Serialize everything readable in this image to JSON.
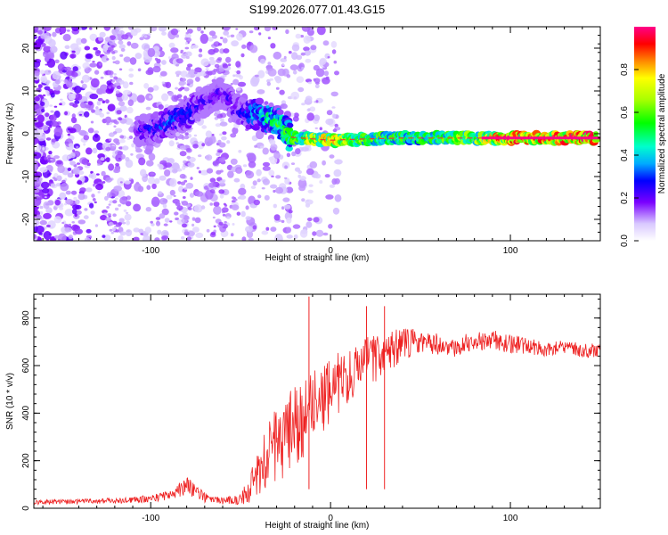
{
  "title": "S199.2026.077.01.43.G15",
  "colors": {
    "snr_line": "#ee2222",
    "signal_ridge": "#ee3333",
    "background": "#ffffff"
  },
  "chart_data": [
    {
      "type": "heatmap",
      "name": "spectrogram",
      "xlabel": "Height of straight line (km)",
      "ylabel": "Frequency (Hz)",
      "xlim": [
        -165,
        150
      ],
      "ylim": [
        -25,
        25
      ],
      "xticks": [
        -100,
        0,
        100
      ],
      "xtick_labels": [
        "-100",
        "0",
        "100"
      ],
      "yticks": [
        -20,
        -10,
        0,
        10,
        20
      ],
      "ytick_labels": [
        "-20",
        "-10",
        "0",
        "10",
        "20"
      ],
      "colorbar": {
        "label": "Normalized spectral amplitude",
        "range": [
          0,
          1
        ],
        "ticks": [
          0.0,
          0.2,
          0.4,
          0.6,
          0.8
        ],
        "tick_labels": [
          "0.0",
          "0.2",
          "0.4",
          "0.6",
          "0.8"
        ]
      },
      "ridge": [
        {
          "x": -108,
          "f": 0.5,
          "amp": 0.25
        },
        {
          "x": -100,
          "f": 1.0,
          "amp": 0.3
        },
        {
          "x": -90,
          "f": 2.5,
          "amp": 0.35
        },
        {
          "x": -80,
          "f": 4.5,
          "amp": 0.35
        },
        {
          "x": -70,
          "f": 7.5,
          "amp": 0.25
        },
        {
          "x": -60,
          "f": 9.5,
          "amp": 0.25
        },
        {
          "x": -50,
          "f": 5.0,
          "amp": 0.3
        },
        {
          "x": -40,
          "f": 4.5,
          "amp": 0.45
        },
        {
          "x": -30,
          "f": 3.0,
          "amp": 0.55
        },
        {
          "x": -22,
          "f": -0.8,
          "amp": 0.6
        },
        {
          "x": -10,
          "f": -1.2,
          "amp": 0.75
        },
        {
          "x": 0,
          "f": -1.5,
          "amp": 0.8
        },
        {
          "x": 20,
          "f": -1.2,
          "amp": 0.65
        },
        {
          "x": 40,
          "f": -1.0,
          "amp": 0.6
        },
        {
          "x": 60,
          "f": -1.0,
          "amp": 0.62
        },
        {
          "x": 82,
          "f": -1.0,
          "amp": 0.7
        },
        {
          "x": 95,
          "f": -1.0,
          "amp": 0.9
        },
        {
          "x": 120,
          "f": -1.0,
          "amp": 0.95
        },
        {
          "x": 148,
          "f": -1.0,
          "amp": 0.95
        }
      ]
    },
    {
      "type": "line",
      "name": "snr",
      "xlabel": "Height of straight line (km)",
      "ylabel": "SNR (10 * v/v)",
      "xlim": [
        -165,
        150
      ],
      "ylim": [
        0,
        900
      ],
      "xticks": [
        -100,
        0,
        100
      ],
      "xtick_labels": [
        "-100",
        "0",
        "100"
      ],
      "yticks": [
        0,
        200,
        400,
        600,
        800
      ],
      "ytick_labels": [
        "0",
        "200",
        "400",
        "600",
        "800"
      ],
      "series": [
        {
          "name": "SNR",
          "x": [
            -165,
            -140,
            -120,
            -100,
            -90,
            -80,
            -70,
            -60,
            -50,
            -45,
            -40,
            -35,
            -30,
            -25,
            -20,
            -15,
            -10,
            -5,
            0,
            10,
            20,
            30,
            40,
            50,
            60,
            70,
            80,
            90,
            100,
            110,
            120,
            130,
            140,
            150
          ],
          "values": [
            25,
            28,
            32,
            40,
            55,
            95,
            45,
            30,
            40,
            80,
            150,
            210,
            270,
            310,
            350,
            370,
            420,
            460,
            500,
            560,
            610,
            650,
            690,
            700,
            690,
            680,
            700,
            710,
            690,
            680,
            670,
            675,
            665,
            660
          ],
          "spread": [
            10,
            10,
            12,
            15,
            20,
            40,
            20,
            15,
            25,
            60,
            100,
            140,
            160,
            180,
            180,
            170,
            160,
            150,
            140,
            120,
            110,
            100,
            70,
            50,
            45,
            45,
            45,
            40,
            40,
            35,
            30,
            30,
            30,
            30
          ]
        }
      ],
      "spikes": [
        {
          "x": -12,
          "y": 890
        },
        {
          "x": 20,
          "y": 850
        },
        {
          "x": 30,
          "y": 850
        }
      ]
    }
  ]
}
